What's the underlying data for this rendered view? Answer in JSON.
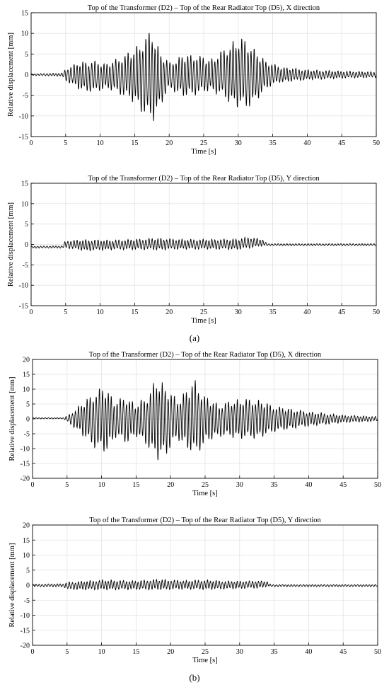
{
  "labels": {
    "a": "(a)",
    "b": "(b)"
  },
  "chart_data": [
    {
      "type": "line",
      "panel": "(a)",
      "title": "Top of the Transformer (D2) – Top of the Rear Radiator Top (D5), X direction",
      "xlabel": "Time [s]",
      "ylabel": "Relative displacement [mm]",
      "xlim": [
        0,
        50
      ],
      "ylim": [
        -15,
        15
      ],
      "xticks": [
        0,
        5,
        10,
        15,
        20,
        25,
        30,
        35,
        40,
        45,
        50
      ],
      "yticks": [
        -15,
        -10,
        -5,
        0,
        5,
        10,
        15
      ],
      "grid": true,
      "line_color": "#000000",
      "series": [
        {
          "envelope": {
            "t": [
              0,
              4.5,
              5,
              7,
              9,
              11,
              13,
              15,
              16.5,
              17.5,
              18.5,
              20,
              22,
              24,
              26,
              28,
              29.5,
              31,
              32.5,
              34,
              36,
              40,
              45,
              50
            ],
            "upper": [
              0.2,
              0.4,
              1.5,
              3.2,
              3.5,
              2.8,
              4.5,
              6.5,
              9.5,
              11.3,
              6.5,
              3.0,
              5.0,
              5.0,
              3.8,
              6.5,
              8.5,
              9.2,
              6.0,
              3.5,
              2.0,
              1.2,
              0.9,
              0.7
            ],
            "lower": [
              -0.2,
              -0.4,
              -1.5,
              -3.8,
              -4.5,
              -3.5,
              -5.0,
              -7.0,
              -10.5,
              -12.2,
              -8.5,
              -3.5,
              -5.5,
              -5.0,
              -4.0,
              -6.0,
              -8.0,
              -8.5,
              -7.0,
              -3.5,
              -2.0,
              -1.3,
              -0.9,
              -0.7
            ]
          }
        }
      ]
    },
    {
      "type": "line",
      "panel": "(a)",
      "title": "Top of the Transformer (D2) – Top of the Rear Radiator Top (D5), Y direction",
      "xlabel": "Time [s]",
      "ylabel": "Relative displacement [mm]",
      "xlim": [
        0,
        50
      ],
      "ylim": [
        -15,
        15
      ],
      "xticks": [
        0,
        5,
        10,
        15,
        20,
        25,
        30,
        35,
        40,
        45,
        50
      ],
      "yticks": [
        -15,
        -10,
        -5,
        0,
        5,
        10,
        15
      ],
      "grid": true,
      "line_color": "#000000",
      "series": [
        {
          "envelope": {
            "t": [
              0,
              4.5,
              5,
              8,
              12,
              16,
              18,
              22,
              26,
              30,
              31.5,
              33.5,
              34.2,
              38,
              50
            ],
            "upper": [
              -0.4,
              -0.3,
              1.0,
              1.2,
              1.1,
              1.4,
              1.6,
              1.3,
              1.3,
              1.4,
              1.9,
              1.3,
              0.2,
              0.2,
              0.2
            ],
            "lower": [
              -0.9,
              -0.9,
              -0.9,
              -1.6,
              -1.3,
              -1.3,
              -1.4,
              -1.2,
              -1.2,
              -1.3,
              -1.0,
              -0.4,
              -0.3,
              -0.3,
              -0.3
            ]
          }
        }
      ]
    },
    {
      "type": "line",
      "panel": "(b)",
      "title": "Top of the Transformer (D2) – Top of the Rear Radiator Top (D5), X direction",
      "xlabel": "Time [s]",
      "ylabel": "Relative displacement [mm]",
      "xlim": [
        0,
        50
      ],
      "ylim": [
        -20,
        20
      ],
      "xticks": [
        0,
        5,
        10,
        15,
        20,
        25,
        30,
        35,
        40,
        45,
        50
      ],
      "yticks": [
        -20,
        -15,
        -10,
        -5,
        0,
        5,
        10,
        15,
        20
      ],
      "grid": true,
      "line_color": "#000000",
      "series": [
        {
          "envelope": {
            "t": [
              0,
              4.5,
              5,
              6.5,
              9,
              10.5,
              12,
              13.5,
              15,
              16.5,
              18,
              19.5,
              21,
              23.5,
              25,
              27,
              29,
              31,
              33,
              35,
              40,
              45,
              50
            ],
            "upper": [
              0.4,
              0.4,
              1.0,
              4.0,
              9.5,
              11.5,
              6.0,
              8.0,
              5.0,
              8.0,
              14.0,
              11.0,
              6.5,
              13.5,
              8.0,
              5.0,
              6.5,
              7.0,
              6.5,
              4.5,
              2.5,
              1.3,
              0.8
            ],
            "lower": [
              0.0,
              0.0,
              -1.0,
              -4.0,
              -10.0,
              -12.0,
              -6.5,
              -8.5,
              -6.0,
              -9.0,
              -14.5,
              -12.0,
              -7.0,
              -13.0,
              -8.5,
              -6.0,
              -6.5,
              -7.0,
              -6.5,
              -4.5,
              -2.5,
              -1.3,
              -0.8
            ]
          }
        }
      ]
    },
    {
      "type": "line",
      "panel": "(b)",
      "title": "Top of the Transformer (D2) – Top of the Rear Radiator Top (D5), Y direction",
      "xlabel": "Time [s]",
      "ylabel": "Relative displacement [mm]",
      "xlim": [
        0,
        50
      ],
      "ylim": [
        -20,
        20
      ],
      "xticks": [
        0,
        5,
        10,
        15,
        20,
        25,
        30,
        35,
        40,
        45,
        50
      ],
      "yticks": [
        -20,
        -15,
        -10,
        -5,
        0,
        5,
        10,
        15,
        20
      ],
      "grid": true,
      "line_color": "#000000",
      "series": [
        {
          "envelope": {
            "t": [
              0,
              4.5,
              5,
              10,
              15,
              18,
              22,
              25,
              28,
              30,
              33,
              34,
              34.5,
              50
            ],
            "upper": [
              0.3,
              0.5,
              1.0,
              1.8,
              1.5,
              2.0,
              1.6,
              1.8,
              1.4,
              1.4,
              1.5,
              1.3,
              0.2,
              0.2
            ],
            "lower": [
              -0.5,
              -0.6,
              -1.5,
              -1.6,
              -1.5,
              -1.6,
              -1.4,
              -1.5,
              -1.3,
              -1.2,
              -1.0,
              -0.5,
              -0.5,
              -0.5
            ]
          }
        }
      ]
    }
  ]
}
